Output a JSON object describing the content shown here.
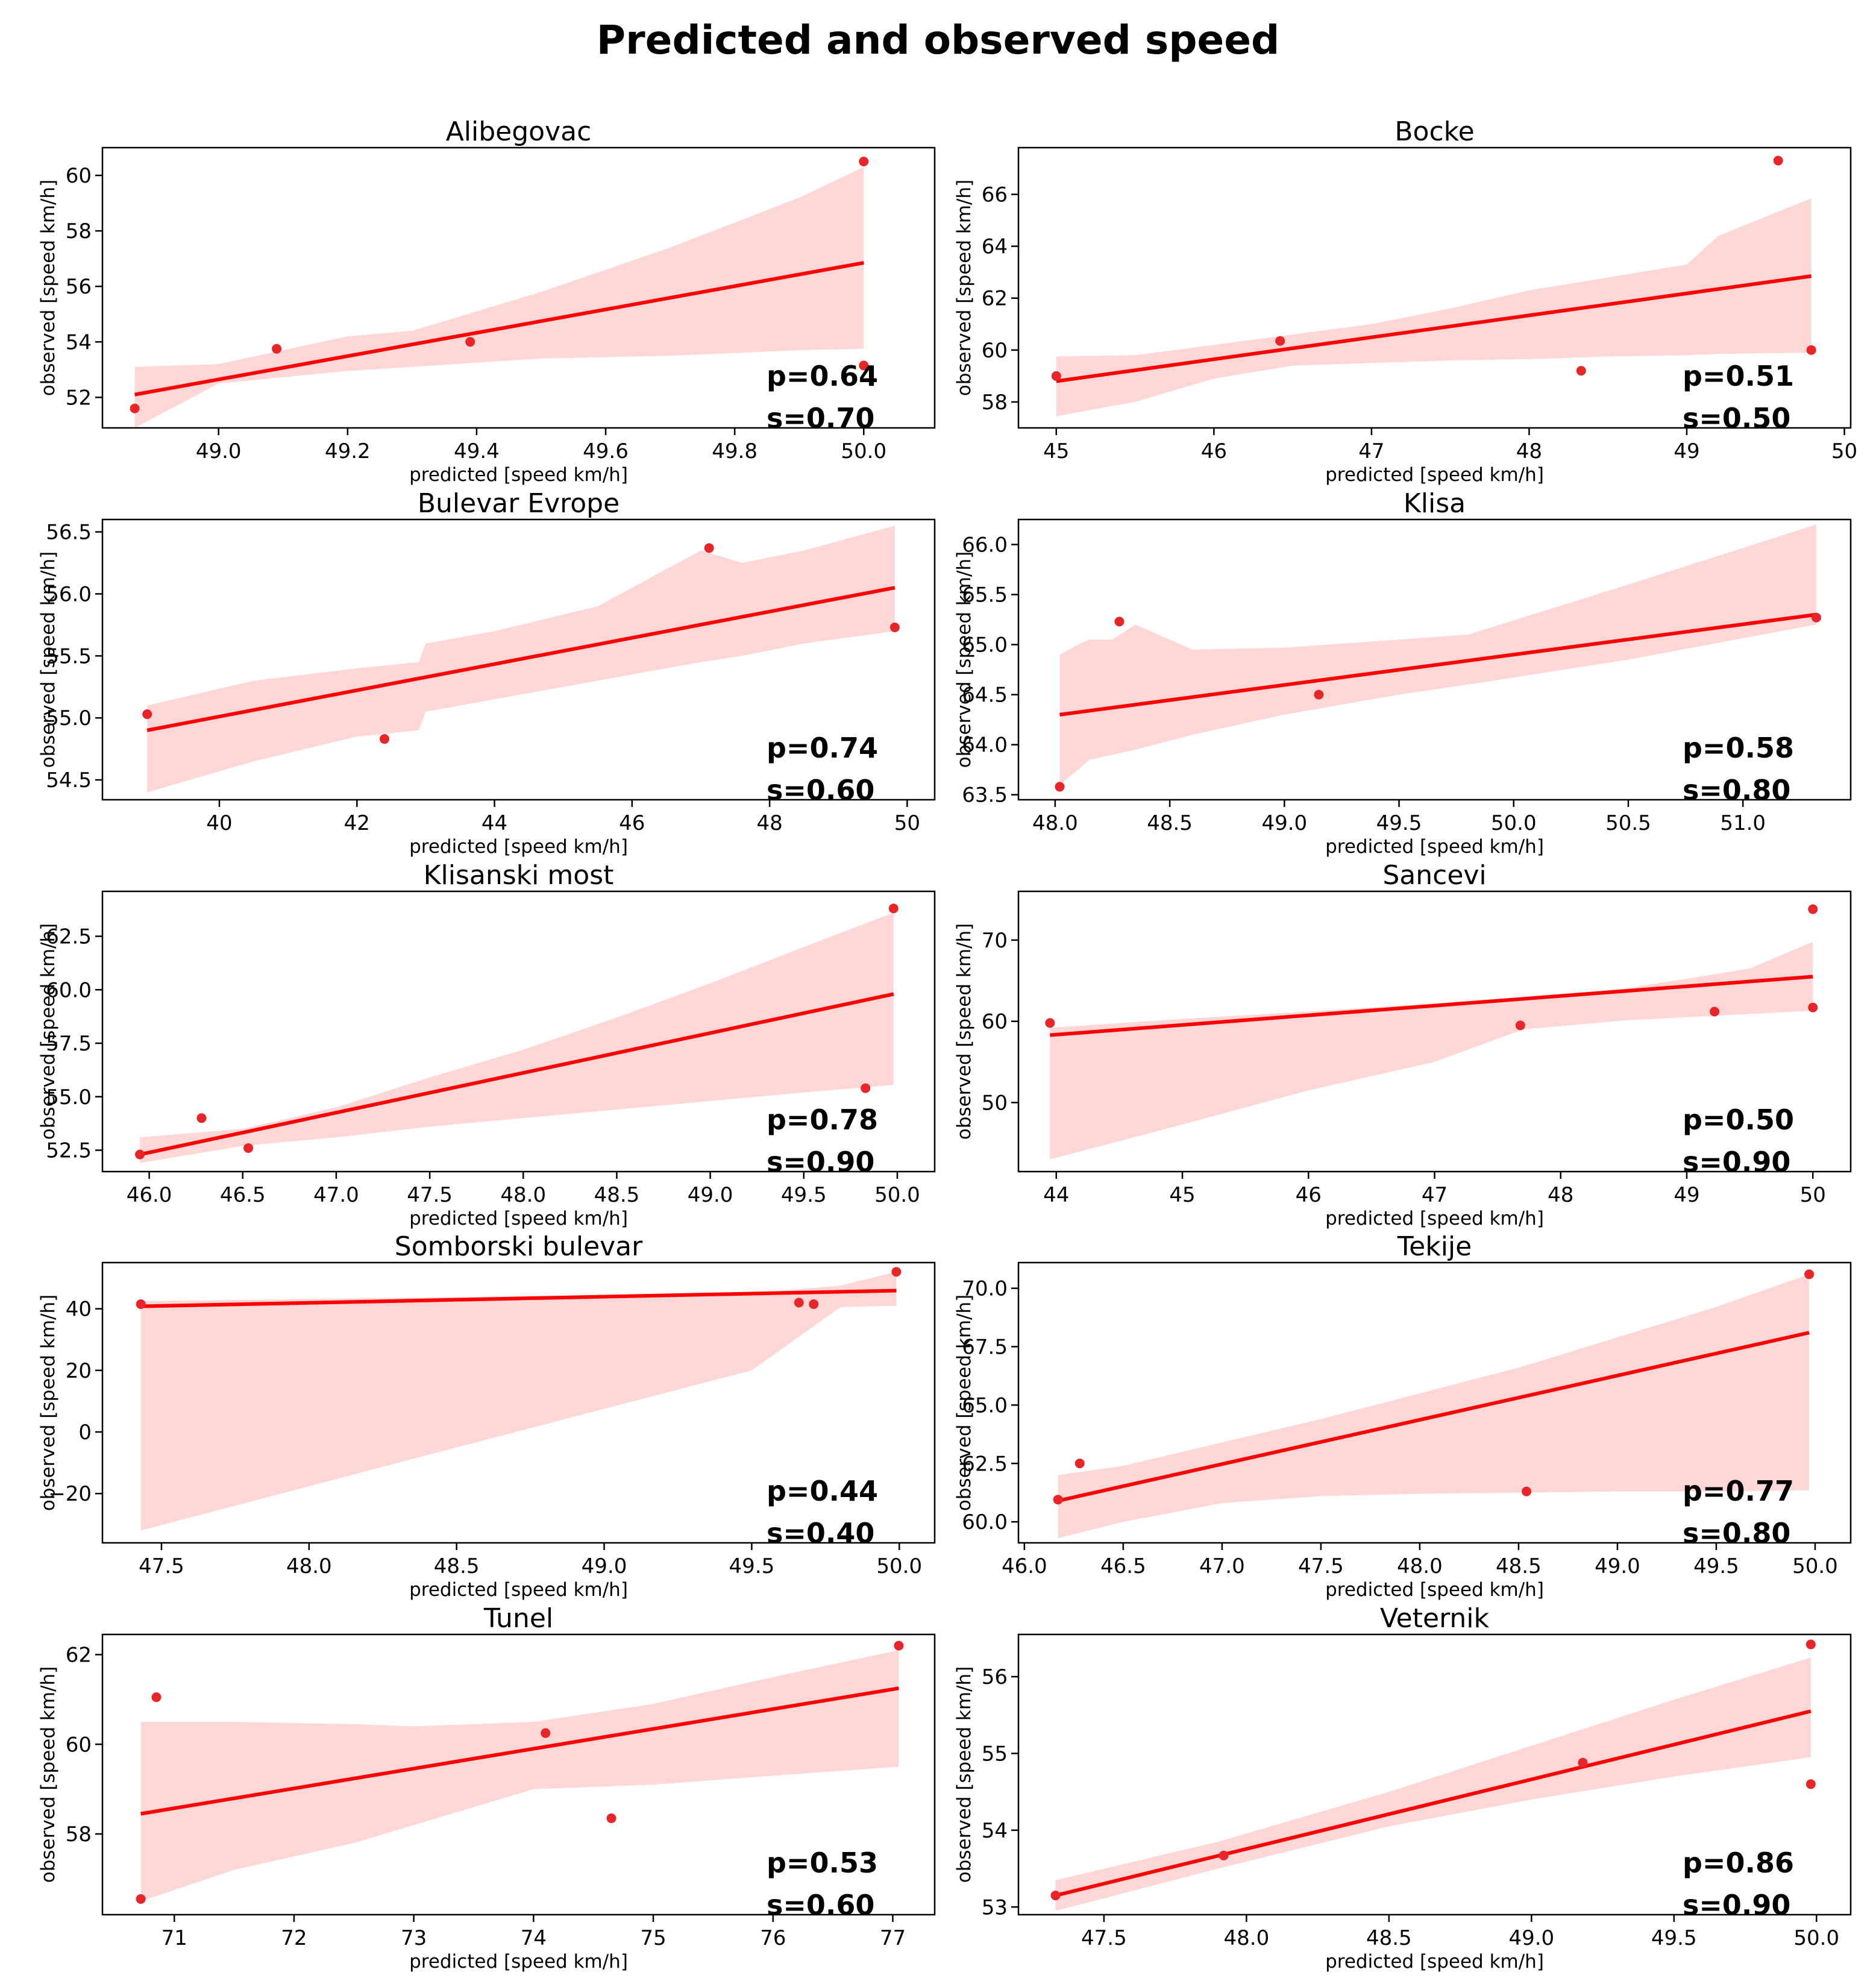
{
  "figure": {
    "title": "Predicted and observed speed",
    "colors": {
      "point": "#e8262a",
      "line": "#ff0000",
      "band": "#ffd7d7",
      "axes": "#000000"
    }
  },
  "chart_data": [
    {
      "type": "scatter",
      "title": "Alibegovac",
      "xlabel": "predicted [speed km/h]",
      "ylabel": "observed [speed km/h]",
      "xlim": [
        48.82,
        50.11
      ],
      "ylim": [
        50.9,
        61.0
      ],
      "xticks": [
        49.0,
        49.2,
        49.4,
        49.6,
        49.8,
        50.0
      ],
      "xtick_labels": [
        "49.0",
        "49.2",
        "49.4",
        "49.6",
        "49.8",
        "50.0"
      ],
      "yticks": [
        52,
        54,
        56,
        58,
        60
      ],
      "ytick_labels": [
        "52",
        "54",
        "56",
        "58",
        "60"
      ],
      "points": [
        [
          48.87,
          51.6
        ],
        [
          49.09,
          53.75
        ],
        [
          49.39,
          54.0
        ],
        [
          50.0,
          53.15
        ],
        [
          50.0,
          60.5
        ]
      ],
      "fit": {
        "x": [
          48.87,
          50.0
        ],
        "y": [
          52.1,
          56.85
        ]
      },
      "band": {
        "x": [
          48.87,
          49.0,
          49.2,
          49.3,
          49.5,
          49.7,
          49.9,
          50.0
        ],
        "upper": [
          53.1,
          53.2,
          54.2,
          54.4,
          55.8,
          57.4,
          59.2,
          60.3
        ],
        "lower": [
          50.9,
          52.5,
          52.95,
          53.1,
          53.4,
          53.5,
          53.7,
          53.75
        ]
      },
      "p_text": "p=0.64",
      "s_text": "s=0.70"
    },
    {
      "type": "scatter",
      "title": "Bocke",
      "xlabel": "predicted [speed km/h]",
      "ylabel": "observed [speed km/h]",
      "xlim": [
        44.76,
        50.04
      ],
      "ylim": [
        57.0,
        67.8
      ],
      "xticks": [
        45,
        46,
        47,
        48,
        49,
        50
      ],
      "xtick_labels": [
        "45",
        "46",
        "47",
        "48",
        "49",
        "50"
      ],
      "yticks": [
        58,
        60,
        62,
        64,
        66
      ],
      "ytick_labels": [
        "58",
        "60",
        "62",
        "64",
        "66"
      ],
      "points": [
        [
          45.0,
          59.0
        ],
        [
          46.42,
          60.35
        ],
        [
          48.33,
          59.2
        ],
        [
          49.58,
          67.3
        ],
        [
          49.79,
          60.0
        ]
      ],
      "fit": {
        "x": [
          45.0,
          49.79
        ],
        "y": [
          58.8,
          62.85
        ]
      },
      "band": {
        "x": [
          45.0,
          45.5,
          46.0,
          46.5,
          47.0,
          47.5,
          48.0,
          48.5,
          49.0,
          49.2,
          49.79
        ],
        "upper": [
          59.75,
          59.8,
          60.2,
          60.6,
          61.0,
          61.6,
          62.3,
          62.8,
          63.3,
          64.4,
          65.85
        ],
        "lower": [
          57.45,
          58.0,
          58.9,
          59.4,
          59.5,
          59.6,
          59.65,
          59.75,
          59.8,
          59.85,
          59.9
        ]
      },
      "p_text": "p=0.51",
      "s_text": "s=0.50"
    },
    {
      "type": "scatter",
      "title": "Bulevar Evrope",
      "xlabel": "predicted [speed km/h]",
      "ylabel": "observed [speed km/h]",
      "xlim": [
        38.3,
        50.4
      ],
      "ylim": [
        54.34,
        56.6
      ],
      "xticks": [
        40,
        42,
        44,
        46,
        48,
        50
      ],
      "xtick_labels": [
        "40",
        "42",
        "44",
        "46",
        "48",
        "50"
      ],
      "yticks": [
        54.5,
        55.0,
        55.5,
        56.0,
        56.5
      ],
      "ytick_labels": [
        "54.5",
        "55.0",
        "55.5",
        "56.0",
        "56.5"
      ],
      "points": [
        [
          38.95,
          55.03
        ],
        [
          42.4,
          54.83
        ],
        [
          47.12,
          56.37
        ],
        [
          49.82,
          55.73
        ]
      ],
      "fit": {
        "x": [
          38.95,
          49.82
        ],
        "y": [
          54.9,
          56.05
        ]
      },
      "band": {
        "x": [
          38.95,
          40.5,
          42.0,
          42.9,
          43.0,
          44.0,
          45.5,
          47.0,
          47.6,
          48.5,
          49.82
        ],
        "upper": [
          55.1,
          55.3,
          55.4,
          55.45,
          55.6,
          55.7,
          55.9,
          56.35,
          56.25,
          56.35,
          56.55
        ],
        "lower": [
          54.4,
          54.65,
          54.85,
          54.9,
          55.05,
          55.15,
          55.3,
          55.45,
          55.5,
          55.6,
          55.7
        ]
      },
      "p_text": "p=0.74",
      "s_text": "s=0.60"
    },
    {
      "type": "scatter",
      "title": "Klisa",
      "xlabel": "predicted [speed km/h]",
      "ylabel": "observed [speed km/h]",
      "xlim": [
        47.84,
        51.47
      ],
      "ylim": [
        63.45,
        66.25
      ],
      "xticks": [
        48.0,
        48.5,
        49.0,
        49.5,
        50.0,
        50.5,
        51.0
      ],
      "xtick_labels": [
        "48.0",
        "48.5",
        "49.0",
        "49.5",
        "50.0",
        "50.5",
        "51.0"
      ],
      "yticks": [
        63.5,
        64.0,
        64.5,
        65.0,
        65.5,
        66.0
      ],
      "ytick_labels": [
        "63.5",
        "64.0",
        "64.5",
        "65.0",
        "65.5",
        "66.0"
      ],
      "points": [
        [
          48.02,
          63.58
        ],
        [
          48.28,
          65.23
        ],
        [
          49.15,
          64.5
        ],
        [
          51.32,
          65.27
        ]
      ],
      "fit": {
        "x": [
          48.02,
          51.32
        ],
        "y": [
          64.3,
          65.3
        ]
      },
      "band": {
        "x": [
          48.02,
          48.1,
          48.15,
          48.25,
          48.35,
          48.6,
          49.0,
          49.5,
          49.8,
          50.5,
          51.32
        ],
        "upper": [
          64.9,
          65.0,
          65.05,
          65.05,
          65.2,
          64.95,
          64.97,
          65.05,
          65.1,
          65.6,
          66.2
        ],
        "lower": [
          63.6,
          63.75,
          63.85,
          63.9,
          63.95,
          64.1,
          64.3,
          64.5,
          64.6,
          64.85,
          65.2
        ]
      },
      "p_text": "p=0.58",
      "s_text": "s=0.80"
    },
    {
      "type": "scatter",
      "title": "Klisanski most",
      "xlabel": "predicted [speed km/h]",
      "ylabel": "observed [speed km/h]",
      "xlim": [
        45.75,
        50.2
      ],
      "ylim": [
        51.5,
        64.6
      ],
      "xticks": [
        46.0,
        46.5,
        47.0,
        47.5,
        48.0,
        48.5,
        49.0,
        49.5,
        50.0
      ],
      "xtick_labels": [
        "46.0",
        "46.5",
        "47.0",
        "47.5",
        "48.0",
        "48.5",
        "49.0",
        "49.5",
        "50.0"
      ],
      "yticks": [
        52.5,
        55.0,
        57.5,
        60.0,
        62.5
      ],
      "ytick_labels": [
        "52.5",
        "55.0",
        "57.5",
        "60.0",
        "62.5"
      ],
      "points": [
        [
          45.95,
          52.3
        ],
        [
          46.28,
          54.0
        ],
        [
          46.53,
          52.6
        ],
        [
          49.83,
          55.4
        ],
        [
          49.98,
          63.8
        ]
      ],
      "fit": {
        "x": [
          45.95,
          49.98
        ],
        "y": [
          52.3,
          59.8
        ]
      },
      "band": {
        "x": [
          45.95,
          46.5,
          47.0,
          47.5,
          48.0,
          48.5,
          49.0,
          49.5,
          49.98
        ],
        "upper": [
          53.1,
          53.5,
          54.5,
          55.9,
          57.2,
          58.7,
          60.3,
          62.0,
          63.6
        ],
        "lower": [
          51.9,
          52.7,
          53.1,
          53.6,
          54.0,
          54.4,
          54.8,
          55.2,
          55.55
        ]
      },
      "p_text": "p=0.78",
      "s_text": "s=0.90"
    },
    {
      "type": "scatter",
      "title": "Sancevi",
      "xlabel": "predicted [speed km/h]",
      "ylabel": "observed [speed km/h]",
      "xlim": [
        43.7,
        50.3
      ],
      "ylim": [
        41.5,
        76.0
      ],
      "xticks": [
        44,
        45,
        46,
        47,
        48,
        49,
        50
      ],
      "xtick_labels": [
        "44",
        "45",
        "46",
        "47",
        "48",
        "49",
        "50"
      ],
      "yticks": [
        50,
        60,
        70
      ],
      "ytick_labels": [
        "50",
        "60",
        "70"
      ],
      "points": [
        [
          43.95,
          59.8
        ],
        [
          47.68,
          59.5
        ],
        [
          49.22,
          61.2
        ],
        [
          50.0,
          61.7
        ],
        [
          50.0,
          73.8
        ]
      ],
      "fit": {
        "x": [
          43.95,
          50.0
        ],
        "y": [
          58.3,
          65.5
        ]
      },
      "band": {
        "x": [
          43.95,
          45.0,
          46.0,
          47.0,
          47.7,
          48.5,
          49.5,
          50.0
        ],
        "upper": [
          59.2,
          60.3,
          61.2,
          62.2,
          63.0,
          64.0,
          66.5,
          69.8
        ],
        "lower": [
          43.0,
          47.3,
          51.5,
          55.0,
          59.0,
          60.1,
          60.9,
          61.3
        ]
      },
      "p_text": "p=0.50",
      "s_text": "s=0.90"
    },
    {
      "type": "scatter",
      "title": "Somborski bulevar",
      "xlabel": "predicted [speed km/h]",
      "ylabel": "observed [speed km/h]",
      "xlim": [
        47.3,
        50.12
      ],
      "ylim": [
        -36.0,
        55.0
      ],
      "xticks": [
        47.5,
        48.0,
        48.5,
        49.0,
        49.5,
        50.0
      ],
      "xtick_labels": [
        "47.5",
        "48.0",
        "48.5",
        "49.0",
        "49.5",
        "50.0"
      ],
      "yticks": [
        -20,
        0,
        20,
        40
      ],
      "ytick_labels": [
        "−20",
        "0",
        "20",
        "40"
      ],
      "points": [
        [
          47.43,
          41.5
        ],
        [
          49.66,
          42.0
        ],
        [
          49.71,
          41.5
        ],
        [
          49.99,
          52.0
        ]
      ],
      "fit": {
        "x": [
          47.43,
          49.99
        ],
        "y": [
          40.8,
          45.9
        ]
      },
      "band": {
        "x": [
          47.43,
          48.5,
          49.5,
          49.8,
          49.99
        ],
        "upper": [
          42.5,
          43.8,
          45.0,
          47.5,
          52.0
        ],
        "lower": [
          -32.0,
          -5.0,
          20.0,
          40.5,
          41.0
        ]
      },
      "p_text": "p=0.44",
      "s_text": "s=0.40"
    },
    {
      "type": "scatter",
      "title": "Tekije",
      "xlabel": "predicted [speed km/h]",
      "ylabel": "observed [speed km/h]",
      "xlim": [
        45.97,
        50.18
      ],
      "ylim": [
        59.1,
        71.1
      ],
      "xticks": [
        46.0,
        46.5,
        47.0,
        47.5,
        48.0,
        48.5,
        49.0,
        49.5,
        50.0
      ],
      "xtick_labels": [
        "46.0",
        "46.5",
        "47.0",
        "47.5",
        "48.0",
        "48.5",
        "49.0",
        "49.5",
        "50.0"
      ],
      "yticks": [
        60.0,
        62.5,
        65.0,
        67.5,
        70.0
      ],
      "ytick_labels": [
        "60.0",
        "62.5",
        "65.0",
        "67.5",
        "70.0"
      ],
      "points": [
        [
          46.17,
          60.95
        ],
        [
          46.28,
          62.5
        ],
        [
          48.54,
          61.3
        ],
        [
          49.97,
          70.6
        ]
      ],
      "fit": {
        "x": [
          46.17,
          49.97
        ],
        "y": [
          60.9,
          68.1
        ]
      },
      "band": {
        "x": [
          46.17,
          46.5,
          47.0,
          47.5,
          48.0,
          48.5,
          49.0,
          49.5,
          49.97
        ],
        "upper": [
          62.0,
          62.4,
          63.4,
          64.4,
          65.5,
          66.6,
          67.9,
          69.2,
          70.6
        ],
        "lower": [
          59.3,
          60.0,
          60.8,
          61.1,
          61.2,
          61.25,
          61.3,
          61.3,
          61.35
        ]
      },
      "p_text": "p=0.77",
      "s_text": "s=0.80"
    },
    {
      "type": "scatter",
      "title": "Tunel",
      "xlabel": "predicted [speed km/h]",
      "ylabel": "observed [speed km/h]",
      "xlim": [
        70.4,
        77.35
      ],
      "ylim": [
        56.2,
        62.45
      ],
      "xticks": [
        71,
        72,
        73,
        74,
        75,
        76,
        77
      ],
      "xtick_labels": [
        "71",
        "72",
        "73",
        "74",
        "75",
        "76",
        "77"
      ],
      "yticks": [
        58,
        60,
        62
      ],
      "ytick_labels": [
        "58",
        "60",
        "62"
      ],
      "points": [
        [
          70.72,
          56.55
        ],
        [
          70.85,
          61.05
        ],
        [
          74.1,
          60.25
        ],
        [
          74.65,
          58.35
        ],
        [
          77.05,
          62.2
        ]
      ],
      "fit": {
        "x": [
          70.72,
          77.05
        ],
        "y": [
          58.45,
          61.25
        ]
      },
      "band": {
        "x": [
          70.72,
          71.5,
          72.5,
          73.0,
          74.0,
          75.0,
          76.0,
          77.05
        ],
        "upper": [
          60.5,
          60.5,
          60.45,
          60.4,
          60.5,
          60.9,
          61.5,
          62.1
        ],
        "lower": [
          56.5,
          57.2,
          57.8,
          58.2,
          59.0,
          59.1,
          59.3,
          59.5
        ]
      },
      "p_text": "p=0.53",
      "s_text": "s=0.60"
    },
    {
      "type": "scatter",
      "title": "Veternik",
      "xlabel": "predicted [speed km/h]",
      "ylabel": "observed [speed km/h]",
      "xlim": [
        47.2,
        50.12
      ],
      "ylim": [
        52.9,
        56.55
      ],
      "xticks": [
        47.5,
        48.0,
        48.5,
        49.0,
        49.5,
        50.0
      ],
      "xtick_labels": [
        "47.5",
        "48.0",
        "48.5",
        "49.0",
        "49.5",
        "50.0"
      ],
      "yticks": [
        53,
        54,
        55,
        56
      ],
      "ytick_labels": [
        "53",
        "54",
        "55",
        "56"
      ],
      "points": [
        [
          47.33,
          53.15
        ],
        [
          47.92,
          53.67
        ],
        [
          49.18,
          54.88
        ],
        [
          49.98,
          54.6
        ],
        [
          49.98,
          56.42
        ]
      ],
      "fit": {
        "x": [
          47.33,
          49.98
        ],
        "y": [
          53.15,
          55.55
        ]
      },
      "band": {
        "x": [
          47.33,
          47.9,
          48.5,
          49.0,
          49.5,
          49.98
        ],
        "upper": [
          53.35,
          53.85,
          54.5,
          55.1,
          55.7,
          56.25
        ],
        "lower": [
          52.95,
          53.5,
          54.05,
          54.4,
          54.7,
          54.95
        ]
      },
      "p_text": "p=0.86",
      "s_text": "s=0.90"
    }
  ]
}
